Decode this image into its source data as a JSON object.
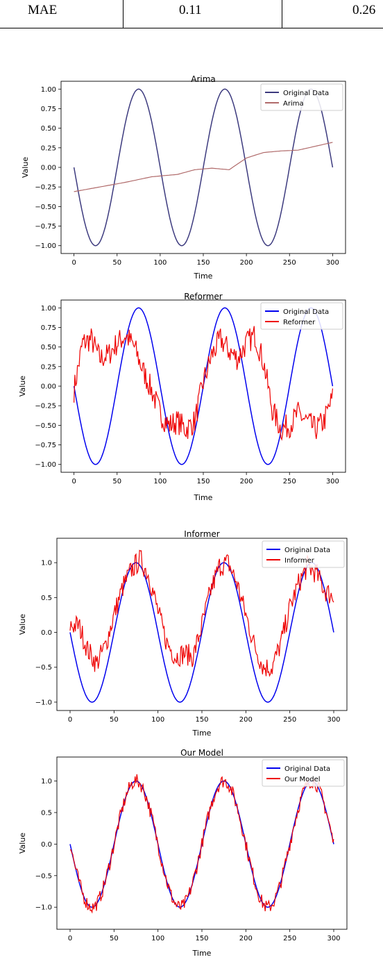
{
  "table": {
    "row": {
      "metric": "MAE",
      "value_a": "0.11",
      "value_b": "0.26"
    }
  },
  "chart_data": [
    {
      "type": "line",
      "title": "Arima",
      "xlabel": "Time",
      "ylabel": "Value",
      "xlim": [
        -15,
        315
      ],
      "ylim": [
        -1.1,
        1.1
      ],
      "xticks": [
        0,
        50,
        100,
        150,
        200,
        250,
        300
      ],
      "yticks": [
        -1.0,
        -0.75,
        -0.5,
        -0.25,
        0.0,
        0.25,
        0.5,
        0.75,
        1.0
      ],
      "ytick_labels": [
        "−1.00",
        "−0.75",
        "−0.50",
        "−0.25",
        "0.00",
        "0.25",
        "0.50",
        "0.75",
        "1.00"
      ],
      "legend_position": "top-right",
      "series": [
        {
          "name": "Original Data",
          "color": "#3c3a7e",
          "kind": "sine"
        },
        {
          "name": "Arima",
          "color": "#b06a6a",
          "x": [
            0,
            30,
            60,
            90,
            120,
            140,
            160,
            180,
            200,
            220,
            240,
            260,
            280,
            300
          ],
          "y": [
            -0.31,
            -0.25,
            -0.19,
            -0.12,
            -0.09,
            -0.03,
            -0.01,
            -0.03,
            0.12,
            0.19,
            0.21,
            0.22,
            0.27,
            0.32
          ]
        }
      ]
    },
    {
      "type": "line",
      "title": "Reformer",
      "xlabel": "Time",
      "ylabel": "Value",
      "xlim": [
        -15,
        315
      ],
      "ylim": [
        -1.1,
        1.1
      ],
      "xticks": [
        0,
        50,
        100,
        150,
        200,
        250,
        300
      ],
      "yticks": [
        -1.0,
        -0.75,
        -0.5,
        -0.25,
        0.0,
        0.25,
        0.5,
        0.75,
        1.0
      ],
      "ytick_labels": [
        "−1.00",
        "−0.75",
        "−0.50",
        "−0.25",
        "0.00",
        "0.25",
        "0.50",
        "0.75",
        "1.00"
      ],
      "legend_position": "top-right",
      "series": [
        {
          "name": "Original Data",
          "color": "#0000ee",
          "kind": "sine"
        },
        {
          "name": "Reformer",
          "color": "#ee0000",
          "x": [
            0,
            10,
            20,
            30,
            40,
            50,
            60,
            70,
            80,
            90,
            100,
            110,
            120,
            130,
            140,
            150,
            160,
            170,
            180,
            190,
            200,
            210,
            220,
            230,
            240,
            250,
            260,
            270,
            280,
            290,
            300
          ],
          "y": [
            -0.05,
            0.55,
            0.6,
            0.35,
            0.4,
            0.55,
            0.65,
            0.5,
            0.2,
            -0.05,
            -0.35,
            -0.5,
            -0.45,
            -0.55,
            -0.45,
            0.05,
            0.4,
            0.6,
            0.45,
            0.35,
            0.55,
            0.65,
            0.3,
            -0.3,
            -0.55,
            -0.5,
            -0.35,
            -0.45,
            -0.55,
            -0.45,
            -0.15
          ]
        }
      ]
    },
    {
      "type": "line",
      "title": "Informer",
      "xlabel": "Time",
      "ylabel": "Value",
      "xlim": [
        -15,
        315
      ],
      "ylim": [
        -1.12,
        1.35
      ],
      "xticks": [
        0,
        50,
        100,
        150,
        200,
        250,
        300
      ],
      "yticks": [
        -1.0,
        -0.5,
        0.0,
        0.5,
        1.0
      ],
      "ytick_labels": [
        "−1.0",
        "−0.5",
        "0.0",
        "0.5",
        "1.0"
      ],
      "legend_position": "top-right",
      "series": [
        {
          "name": "Original Data",
          "color": "#0000ee",
          "kind": "sine"
        },
        {
          "name": "Informer",
          "color": "#ee0000",
          "x": [
            0,
            10,
            20,
            30,
            40,
            50,
            60,
            70,
            80,
            90,
            100,
            110,
            120,
            130,
            140,
            150,
            160,
            170,
            180,
            190,
            200,
            210,
            220,
            230,
            240,
            250,
            260,
            270,
            280,
            290,
            300
          ],
          "y": [
            0.1,
            0.1,
            -0.25,
            -0.45,
            -0.2,
            0.25,
            0.65,
            0.9,
            1.05,
            0.8,
            0.3,
            -0.15,
            -0.35,
            -0.3,
            -0.35,
            0.1,
            0.6,
            0.95,
            1.0,
            0.7,
            0.25,
            -0.2,
            -0.5,
            -0.5,
            -0.15,
            0.35,
            0.7,
            0.95,
            0.85,
            0.6,
            0.5
          ]
        }
      ]
    },
    {
      "type": "line",
      "title": "Our Model",
      "xlabel": "Time",
      "ylabel": "Value",
      "xlim": [
        -15,
        315
      ],
      "ylim": [
        -1.35,
        1.38
      ],
      "xticks": [
        0,
        50,
        100,
        150,
        200,
        250,
        300
      ],
      "yticks": [
        -1.0,
        -0.5,
        0.0,
        0.5,
        1.0
      ],
      "ytick_labels": [
        "−1.0",
        "−0.5",
        "0.0",
        "0.5",
        "1.0"
      ],
      "legend_position": "top-right",
      "series": [
        {
          "name": "Original Data",
          "color": "#0000ee",
          "kind": "sine"
        },
        {
          "name": "Our Model",
          "color": "#ee0000",
          "kind": "sine-noisy"
        }
      ]
    }
  ]
}
